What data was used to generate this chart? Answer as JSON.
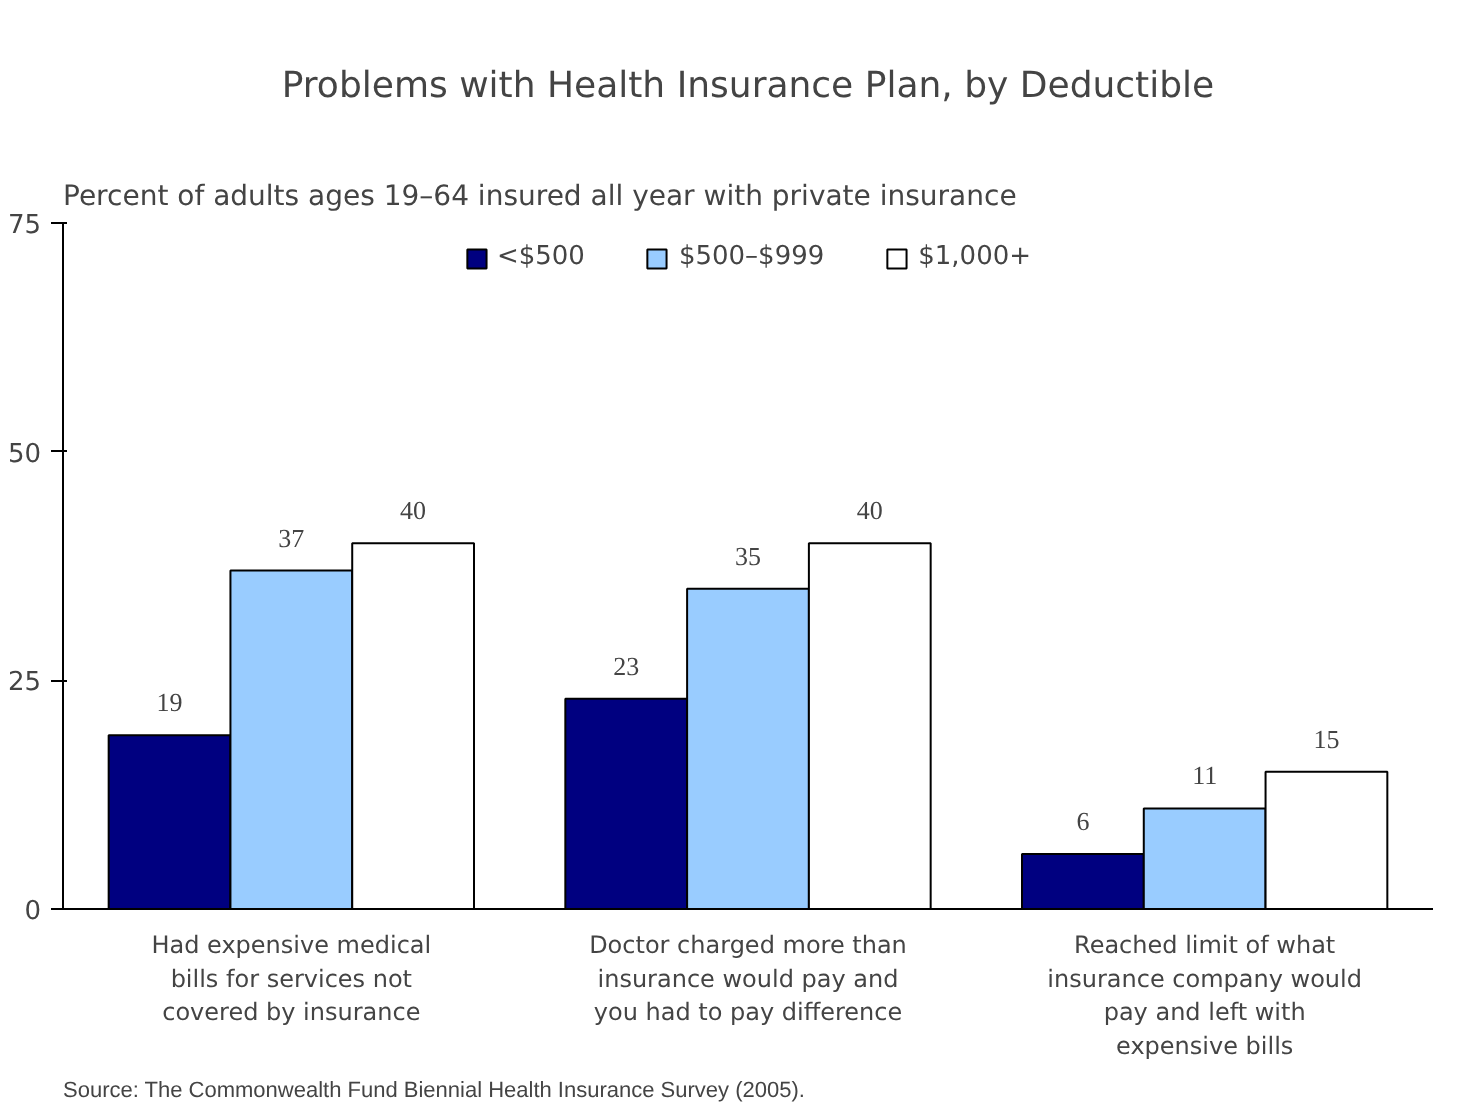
{
  "chart_data": {
    "type": "bar",
    "title": "Problems with Health Insurance Plan, by Deductible",
    "subtitle": "Percent of adults ages 19–64 insured all year with private insurance",
    "categories": [
      "Had expensive medical\nbills for services not\ncovered by insurance",
      "Doctor charged more than\ninsurance would pay and\nyou had to pay difference",
      "Reached limit of what\ninsurance company would\npay and left with\nexpensive bills"
    ],
    "series": [
      {
        "name": "<$500",
        "color": "#000080",
        "values": [
          19,
          23,
          6
        ]
      },
      {
        "name": "$500–$999",
        "color": "#99ccff",
        "values": [
          37,
          35,
          11
        ]
      },
      {
        "name": "$1,000+",
        "color": "#ffffff",
        "values": [
          40,
          40,
          15
        ]
      }
    ],
    "ylim": [
      0,
      75
    ],
    "yticks": [
      0,
      25,
      50,
      75
    ],
    "grid": false,
    "legend": "top",
    "data_labels": true,
    "annotations": [
      "Source: The Commonwealth Fund Biennial Health Insurance Survey (2005)."
    ]
  }
}
